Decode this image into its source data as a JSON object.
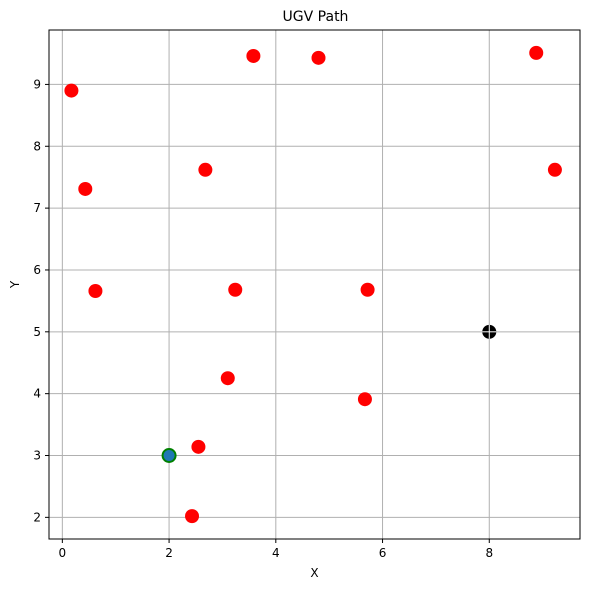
{
  "chart_data": {
    "type": "scatter",
    "title": "UGV Path",
    "xlabel": "X",
    "ylabel": "Y",
    "xlim": [
      -0.25,
      9.7
    ],
    "ylim": [
      1.65,
      9.88
    ],
    "xticks": [
      0,
      2,
      4,
      6,
      8
    ],
    "yticks": [
      2,
      3,
      4,
      5,
      6,
      7,
      8,
      9
    ],
    "grid": true,
    "series": [
      {
        "marker": "red-circle",
        "color": "#ff0000",
        "points": [
          {
            "x": 0.17,
            "y": 8.9
          },
          {
            "x": 0.43,
            "y": 7.31
          },
          {
            "x": 0.62,
            "y": 5.66
          },
          {
            "x": 2.43,
            "y": 2.02
          },
          {
            "x": 2.55,
            "y": 3.14
          },
          {
            "x": 2.68,
            "y": 7.62
          },
          {
            "x": 3.1,
            "y": 4.25
          },
          {
            "x": 3.24,
            "y": 5.68
          },
          {
            "x": 3.58,
            "y": 9.46
          },
          {
            "x": 4.8,
            "y": 9.43
          },
          {
            "x": 5.67,
            "y": 3.91
          },
          {
            "x": 5.72,
            "y": 5.68
          },
          {
            "x": 8.88,
            "y": 9.51
          },
          {
            "x": 9.23,
            "y": 7.62
          }
        ]
      },
      {
        "marker": "start-point",
        "color": "#1f77b4",
        "edge_color": "#008000",
        "points": [
          {
            "x": 2.0,
            "y": 3.0
          }
        ]
      },
      {
        "marker": "goal-point",
        "color": "#000000",
        "cross_color": "#ffffff",
        "points": [
          {
            "x": 8.0,
            "y": 5.0
          }
        ]
      }
    ]
  }
}
